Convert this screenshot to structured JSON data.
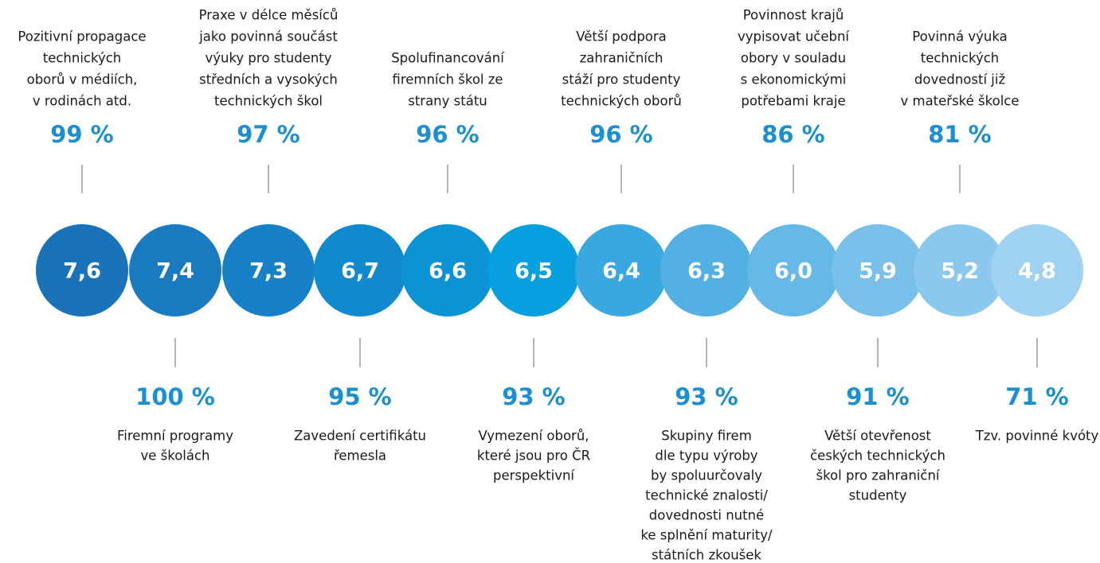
{
  "items": [
    {
      "score": "7,6",
      "percent": "99 %",
      "label": [
        "Pozitivní propagace",
        "technických",
        "oborů v médiích,",
        "v rodinách atd."
      ],
      "color": "#1a72b8"
    },
    {
      "score": "7,4",
      "percent": "100 %",
      "label": [
        "Firemní programy",
        "ve školách"
      ],
      "color": "#1a7abf"
    },
    {
      "score": "7,3",
      "percent": "97 %",
      "label": [
        "Praxe v délce měsíců",
        "jako povinná součást",
        "výuky pro studenty",
        "středních a vysokých",
        "technických škol"
      ],
      "color": "#1681c6"
    },
    {
      "score": "6,7",
      "percent": "95 %",
      "label": [
        "Zavedení certifikátu",
        "řemesla"
      ],
      "color": "#1189cd"
    },
    {
      "score": "6,6",
      "percent": "96 %",
      "label": [
        "Spolufinancování",
        "firemních škol ze",
        "strany státu"
      ],
      "color": "#0b93d5"
    },
    {
      "score": "6,5",
      "percent": "93 %",
      "label": [
        "Vymezení oborů,",
        "které jsou pro ČR",
        "perspektivní"
      ],
      "color": "#05a0dd"
    },
    {
      "score": "6,4",
      "percent": "96 %",
      "label": [
        "Větší podpora",
        "zahraničních",
        "stáží pro studenty",
        "technických oborů"
      ],
      "color": "#3aa8e0"
    },
    {
      "score": "6,3",
      "percent": "93 %",
      "label": [
        "Skupiny firem",
        "dle typu výroby",
        "by spoluurčovaly",
        "technické znalosti/",
        "dovednosti nutné",
        "ke splnění maturity/",
        "státních zkoušek"
      ],
      "color": "#52b0e3"
    },
    {
      "score": "6,0",
      "percent": "86 %",
      "label": [
        "Povinnost krajů",
        "vypisovat učební",
        "obory v souladu",
        "s ekonomickými",
        "potřebami kraje"
      ],
      "color": "#66b8e6"
    },
    {
      "score": "5,9",
      "percent": "91 %",
      "label": [
        "Větší otevřenost",
        "českých technických",
        "škol pro zahraniční",
        "studenty"
      ],
      "color": "#78c0e9"
    },
    {
      "score": "5,2",
      "percent": "81 %",
      "label": [
        "Povinná výuka",
        "technických",
        "dovedností již",
        "v mateřské školce"
      ],
      "color": "#8bc8ed"
    },
    {
      "score": "4,8",
      "percent": "71 %",
      "label": [
        "Tzv. povinné kvóty"
      ],
      "color": "#9fd1f1"
    }
  ]
}
